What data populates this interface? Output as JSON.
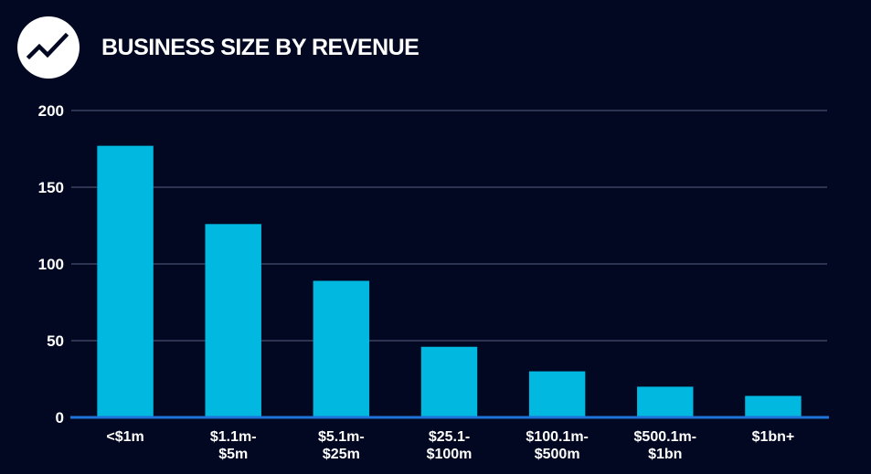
{
  "header": {
    "icon": "trend-line-icon",
    "title": "BUSINESS SIZE BY REVENUE"
  },
  "colors": {
    "background": "#020822",
    "bar": "#00B8E0",
    "axis": "#1E74D8",
    "grid": "#3A4262",
    "text": "#FFFFFF"
  },
  "chart_data": {
    "type": "bar",
    "title": "BUSINESS SIZE BY REVENUE",
    "xlabel": "",
    "ylabel": "",
    "categories": [
      [
        "<$1m"
      ],
      [
        "$1.1m-",
        "$5m"
      ],
      [
        "$5.1m-",
        "$25m"
      ],
      [
        "$25.1-",
        "$100m"
      ],
      [
        "$100.1m-",
        "$500m"
      ],
      [
        "$500.1m-",
        "$1bn"
      ],
      [
        "$1bn+"
      ]
    ],
    "values": [
      177,
      126,
      89,
      46,
      30,
      20,
      14
    ],
    "ylim": [
      0,
      200
    ],
    "yticks": [
      0,
      50,
      100,
      150,
      200
    ],
    "grid": true,
    "legend": "none"
  }
}
